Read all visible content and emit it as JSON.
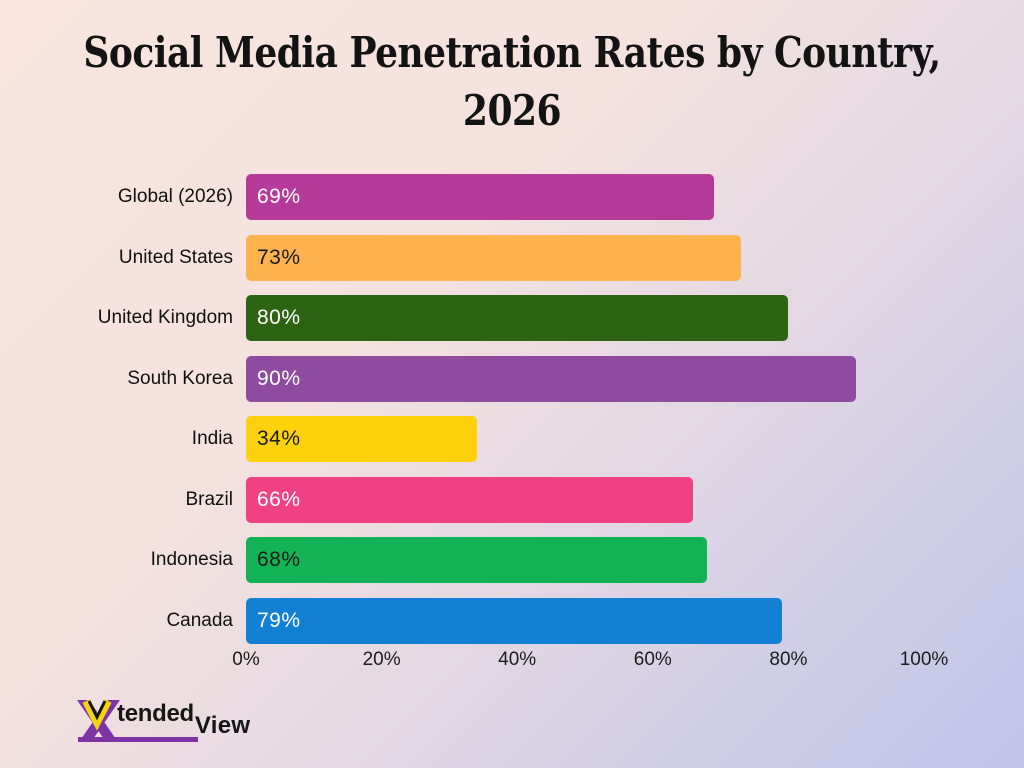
{
  "header": {
    "title_lines": [
      "Social Media Penetration Rates by Country,",
      "2026"
    ]
  },
  "chart_data": {
    "type": "bar",
    "orientation": "horizontal",
    "title": "Social Media Penetration Rates by Country, 2026",
    "categories": [
      "Global (2026)",
      "United States",
      "United Kingdom",
      "South Korea",
      "India",
      "Brazil",
      "Indonesia",
      "Canada"
    ],
    "values": [
      69,
      73,
      80,
      90,
      34,
      66,
      68,
      79
    ],
    "value_labels": [
      "69%",
      "73%",
      "80%",
      "90%",
      "34%",
      "66%",
      "68%",
      "79%"
    ],
    "bar_colors": [
      "#b53a99",
      "#fcb34d",
      "#2d6414",
      "#8e4ba0",
      "#fdd20c",
      "#f04282",
      "#12b356",
      "#1480d4"
    ],
    "value_text_colors": [
      "#ffffff",
      "#1b1b1b",
      "#ffffff",
      "#ffffff",
      "#1b1b1b",
      "#ffffff",
      "#1b1b1b",
      "#ffffff"
    ],
    "xlabel": "",
    "ylabel": "",
    "xlim": [
      0,
      100
    ],
    "x_ticks": [
      "0%",
      "20%",
      "40%",
      "60%",
      "80%",
      "100%"
    ],
    "grid": false,
    "legend": false
  },
  "branding": {
    "logo_name": "XtendedView",
    "logo_part_mid": "tended",
    "logo_part_end": "View",
    "logo_purple": "#7d35a6",
    "logo_yellow": "#f2d511"
  }
}
